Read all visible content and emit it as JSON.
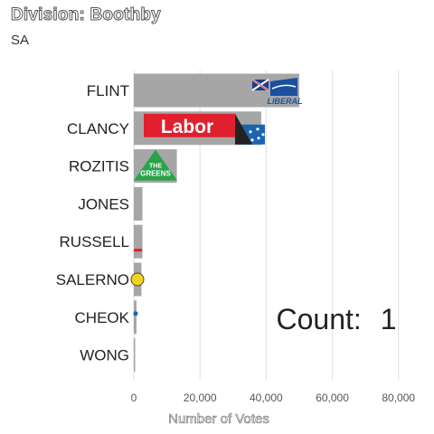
{
  "title": "Division: Boothby",
  "subtitle": "SA",
  "count_label": "Count:",
  "count_value": "1",
  "logo_text": {
    "liberal": "LIBERAL",
    "labor": "Labor",
    "greens_line1": "THE",
    "greens_line2": "GREENS"
  },
  "colors": {
    "bar": "#a6a6a6",
    "liberal": "#1b4fa0",
    "labor": "#e0202e",
    "greens": "#2aa34a",
    "grid": "#e3e3e3"
  },
  "chart_data": {
    "type": "bar",
    "orientation": "horizontal",
    "title": "Division: Boothby",
    "subtitle": "SA",
    "xlabel": "Number of Votes",
    "ylabel": "",
    "categories": [
      "FLINT",
      "CLANCY",
      "ROZITIS",
      "JONES",
      "RUSSELL",
      "SALERNO",
      "CHEOK",
      "WONG"
    ],
    "values": [
      50000,
      38500,
      13000,
      2600,
      2600,
      2300,
      800,
      400
    ],
    "logos": [
      "liberal",
      "labor",
      "greens",
      "",
      "",
      "",
      "",
      ""
    ],
    "xlim": [
      0,
      88000
    ],
    "xticks": [
      0,
      20000,
      40000,
      60000,
      80000
    ],
    "xtick_labels": [
      "0",
      "20,000",
      "40,000",
      "60,000",
      "80,000"
    ],
    "grid": true,
    "legend": "none"
  }
}
